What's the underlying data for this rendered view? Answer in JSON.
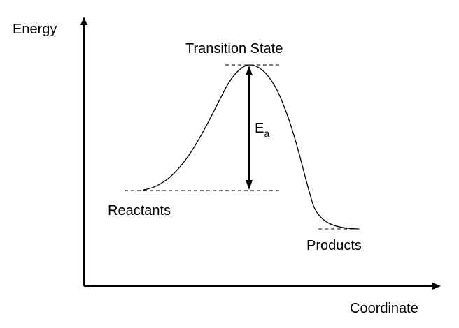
{
  "axes": {
    "y_label": "Energy",
    "x_label": "Coordinate"
  },
  "labels": {
    "transition_state": "Transition State",
    "reactants": "Reactants",
    "products": "Products",
    "activation_energy_symbol": "E",
    "activation_energy_subscript": "a"
  },
  "colors": {
    "ink": "#000000",
    "background": "#ffffff"
  }
}
